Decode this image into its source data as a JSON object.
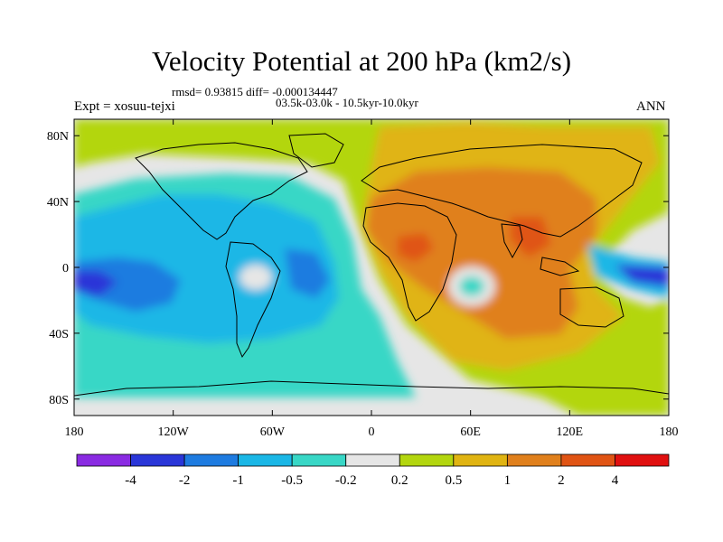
{
  "title": "Velocity Potential at 200 hPa (km2/s)",
  "stats": "rmsd= 0.93815 diff= -0.000134447",
  "experiment_range": "03.5k-03.0k - 10.5kyr-10.0kyr",
  "left_label": "Expt = xosuu-tejxi",
  "right_label": "ANN",
  "axes": {
    "lon_ticks": [
      "180",
      "120W",
      "60W",
      "0",
      "60E",
      "120E",
      "180"
    ],
    "lat_ticks": [
      "80N",
      "40N",
      "0",
      "40S",
      "80S"
    ]
  },
  "colorbar": {
    "labels": [
      "-4",
      "-2",
      "-1",
      "-0.5",
      "-0.2",
      "0.2",
      "0.5",
      "1",
      "2",
      "4"
    ],
    "colors": [
      "#8a2be2",
      "#2a36d8",
      "#1e7be0",
      "#1ab7e6",
      "#38d7c6",
      "#e6e6e6",
      "#b3d60f",
      "#e0b412",
      "#e0801c",
      "#e05414",
      "#e01010"
    ]
  },
  "palette": {
    "land_outline": "#000000",
    "neutral": "#e6e6e6"
  }
}
